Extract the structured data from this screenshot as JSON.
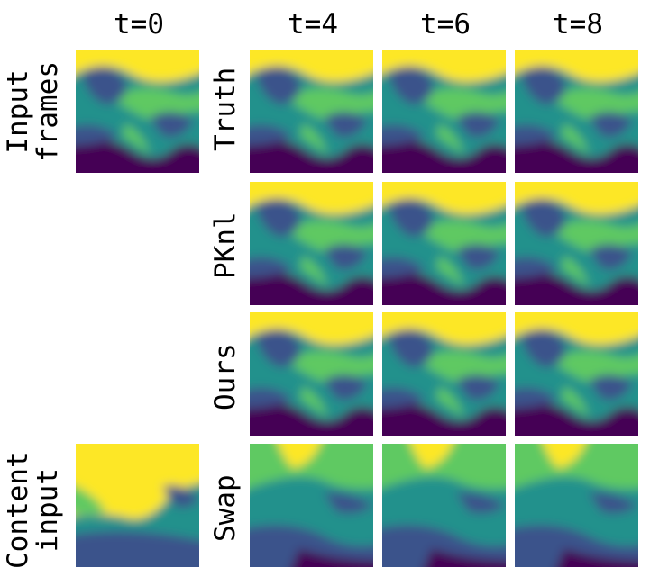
{
  "column_headers": [
    "t=0",
    "t=4",
    "t=6",
    "t=8"
  ],
  "row_labels": {
    "input_frames": "Input\nframes",
    "truth": "Truth",
    "pknl": "PKnl",
    "ours": "Ours",
    "swap": "Swap",
    "content_input": "Content\ninput"
  },
  "colormap": [
    "#440154",
    "#3b528b",
    "#21918c",
    "#5ec962",
    "#fde725"
  ],
  "panels": [
    {
      "row": "input_frames",
      "time": "t=0",
      "variant": "fluid"
    },
    {
      "row": "truth",
      "time": "t=4",
      "variant": "fluid"
    },
    {
      "row": "truth",
      "time": "t=6",
      "variant": "fluid"
    },
    {
      "row": "truth",
      "time": "t=8",
      "variant": "fluid"
    },
    {
      "row": "pknl",
      "time": "t=4",
      "variant": "fluid"
    },
    {
      "row": "pknl",
      "time": "t=6",
      "variant": "fluid"
    },
    {
      "row": "pknl",
      "time": "t=8",
      "variant": "fluid"
    },
    {
      "row": "ours",
      "time": "t=4",
      "variant": "fluid"
    },
    {
      "row": "ours",
      "time": "t=6",
      "variant": "fluid"
    },
    {
      "row": "ours",
      "time": "t=8",
      "variant": "fluid"
    },
    {
      "row": "content_input",
      "time": "t=0",
      "variant": "content"
    },
    {
      "row": "swap",
      "time": "t=4",
      "variant": "swap"
    },
    {
      "row": "swap",
      "time": "t=6",
      "variant": "swap"
    },
    {
      "row": "swap",
      "time": "t=8",
      "variant": "swap"
    }
  ]
}
